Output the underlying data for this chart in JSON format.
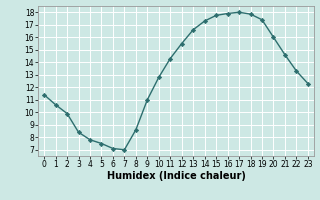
{
  "x": [
    0,
    1,
    2,
    3,
    4,
    5,
    6,
    7,
    8,
    9,
    10,
    11,
    12,
    13,
    14,
    15,
    16,
    17,
    18,
    19,
    20,
    21,
    22,
    23
  ],
  "y": [
    11.4,
    10.6,
    9.9,
    8.4,
    7.8,
    7.5,
    7.1,
    7.0,
    8.6,
    11.0,
    12.8,
    14.3,
    15.5,
    16.6,
    17.3,
    17.75,
    17.9,
    18.0,
    17.85,
    17.4,
    16.0,
    14.6,
    13.3,
    12.3
  ],
  "line_color": "#2d6e6e",
  "marker": "D",
  "marker_size": 2.2,
  "xlabel": "Humidex (Indice chaleur)",
  "xlim": [
    -0.5,
    23.5
  ],
  "ylim": [
    6.5,
    18.5
  ],
  "yticks": [
    7,
    8,
    9,
    10,
    11,
    12,
    13,
    14,
    15,
    16,
    17,
    18
  ],
  "xticks": [
    0,
    1,
    2,
    3,
    4,
    5,
    6,
    7,
    8,
    9,
    10,
    11,
    12,
    13,
    14,
    15,
    16,
    17,
    18,
    19,
    20,
    21,
    22,
    23
  ],
  "bg_color": "#cde8e4",
  "grid_color": "#ffffff",
  "tick_label_fontsize": 5.5,
  "xlabel_fontsize": 7.0,
  "line_width": 1.0
}
